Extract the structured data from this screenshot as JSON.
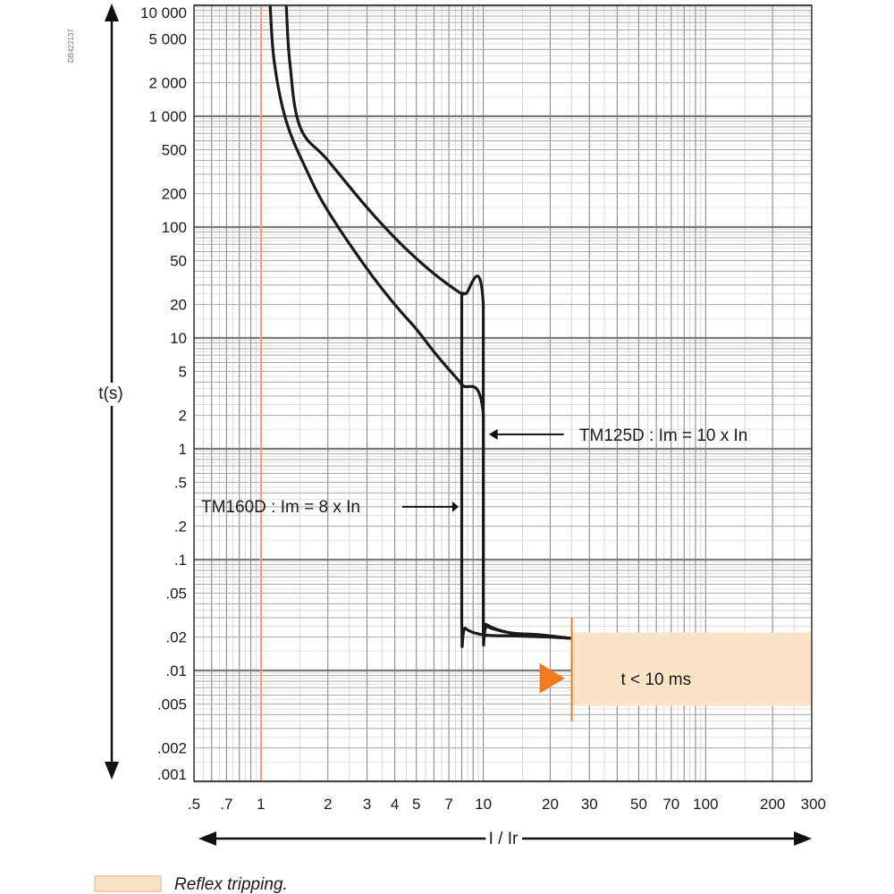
{
  "chart_data": {
    "type": "line",
    "x_scale": "log",
    "y_scale": "log",
    "xlim": [
      0.5,
      300
    ],
    "ylim": [
      0.001,
      10000
    ],
    "grid": true,
    "xlabel": "I / Ir",
    "ylabel": "t(s)",
    "figure_id": "DB422137",
    "y_tick_labels": [
      {
        "v": 10000,
        "label": "10 000"
      },
      {
        "v": 5000,
        "label": "5 000"
      },
      {
        "v": 2000,
        "label": "2 000"
      },
      {
        "v": 1000,
        "label": "1 000"
      },
      {
        "v": 500,
        "label": "500"
      },
      {
        "v": 200,
        "label": "200"
      },
      {
        "v": 100,
        "label": "100"
      },
      {
        "v": 50,
        "label": "50"
      },
      {
        "v": 20,
        "label": "20"
      },
      {
        "v": 10,
        "label": "10"
      },
      {
        "v": 5,
        "label": "5"
      },
      {
        "v": 2,
        "label": "2"
      },
      {
        "v": 1,
        "label": "1"
      },
      {
        "v": 0.5,
        "label": ".5"
      },
      {
        "v": 0.2,
        "label": ".2"
      },
      {
        "v": 0.1,
        "label": ".1"
      },
      {
        "v": 0.05,
        "label": ".05"
      },
      {
        "v": 0.02,
        "label": ".02"
      },
      {
        "v": 0.01,
        "label": ".01"
      },
      {
        "v": 0.005,
        "label": ".005"
      },
      {
        "v": 0.002,
        "label": ".002"
      },
      {
        "v": 0.001,
        "label": ".001"
      }
    ],
    "x_tick_labels": [
      {
        "v": 0.5,
        "label": ".5"
      },
      {
        "v": 0.7,
        "label": ".7"
      },
      {
        "v": 1,
        "label": "1"
      },
      {
        "v": 2,
        "label": "2"
      },
      {
        "v": 3,
        "label": "3"
      },
      {
        "v": 4,
        "label": "4"
      },
      {
        "v": 5,
        "label": "5"
      },
      {
        "v": 7,
        "label": "7"
      },
      {
        "v": 10,
        "label": "10"
      },
      {
        "v": 20,
        "label": "20"
      },
      {
        "v": 30,
        "label": "30"
      },
      {
        "v": 50,
        "label": "50"
      },
      {
        "v": 70,
        "label": "70"
      },
      {
        "v": 100,
        "label": "100"
      },
      {
        "v": 200,
        "label": "200"
      },
      {
        "v": 300,
        "label": "300"
      }
    ],
    "series": [
      {
        "color": "#1a1a1a",
        "points": [
          [
            1.1,
            10000
          ],
          [
            1.15,
            3000
          ],
          [
            1.3,
            900
          ],
          [
            1.6,
            330
          ],
          [
            2.0,
            140
          ],
          [
            3.0,
            42
          ],
          [
            4.0,
            20
          ],
          [
            5.0,
            12
          ],
          [
            6.0,
            7.5
          ],
          [
            7.0,
            5.2
          ],
          [
            8.0,
            3.8
          ],
          [
            10.0,
            2.05
          ],
          [
            10.0,
            0.03
          ],
          [
            10.3,
            0.026
          ],
          [
            13,
            0.022
          ],
          [
            18,
            0.021
          ],
          [
            25,
            0.0195
          ]
        ]
      },
      {
        "color": "#1a1a1a",
        "points": [
          [
            1.3,
            10000
          ],
          [
            1.35,
            3000
          ],
          [
            1.5,
            800
          ],
          [
            2.0,
            400
          ],
          [
            3.0,
            150
          ],
          [
            4.0,
            80
          ],
          [
            5.0,
            52
          ],
          [
            6.0,
            38
          ],
          [
            7.0,
            30
          ],
          [
            8.0,
            25
          ],
          [
            8.3,
            25
          ],
          [
            10.0,
            20
          ],
          [
            10.0,
            0.03
          ],
          [
            10.4,
            0.025
          ],
          [
            13,
            0.022
          ],
          [
            18,
            0.0205
          ],
          [
            25,
            0.0195
          ]
        ]
      },
      {
        "color": "#1a1a1a",
        "points": [
          [
            8.0,
            26
          ],
          [
            8.0,
            0.03
          ],
          [
            8.3,
            0.024
          ],
          [
            10,
            0.021
          ],
          [
            14,
            0.0205
          ],
          [
            20,
            0.02
          ],
          [
            25,
            0.0195
          ]
        ]
      }
    ],
    "annotations": [
      {
        "text": "TM125D : Im = 10 x In"
      },
      {
        "text": "TM160D : Im = 8 x In"
      },
      {
        "text": "t < 10 ms"
      }
    ],
    "reflex_region": {
      "x_from": 25,
      "x_to": 300,
      "y_from": 0.0048,
      "y_to": 0.022,
      "color": "#fbe3c8"
    },
    "reflex_marker_color": "#f07a20",
    "reference_line": {
      "x": 1,
      "color": "#f0a070"
    },
    "legend": [
      {
        "label": "Reflex tripping.",
        "color": "#fbe3c8"
      }
    ]
  }
}
